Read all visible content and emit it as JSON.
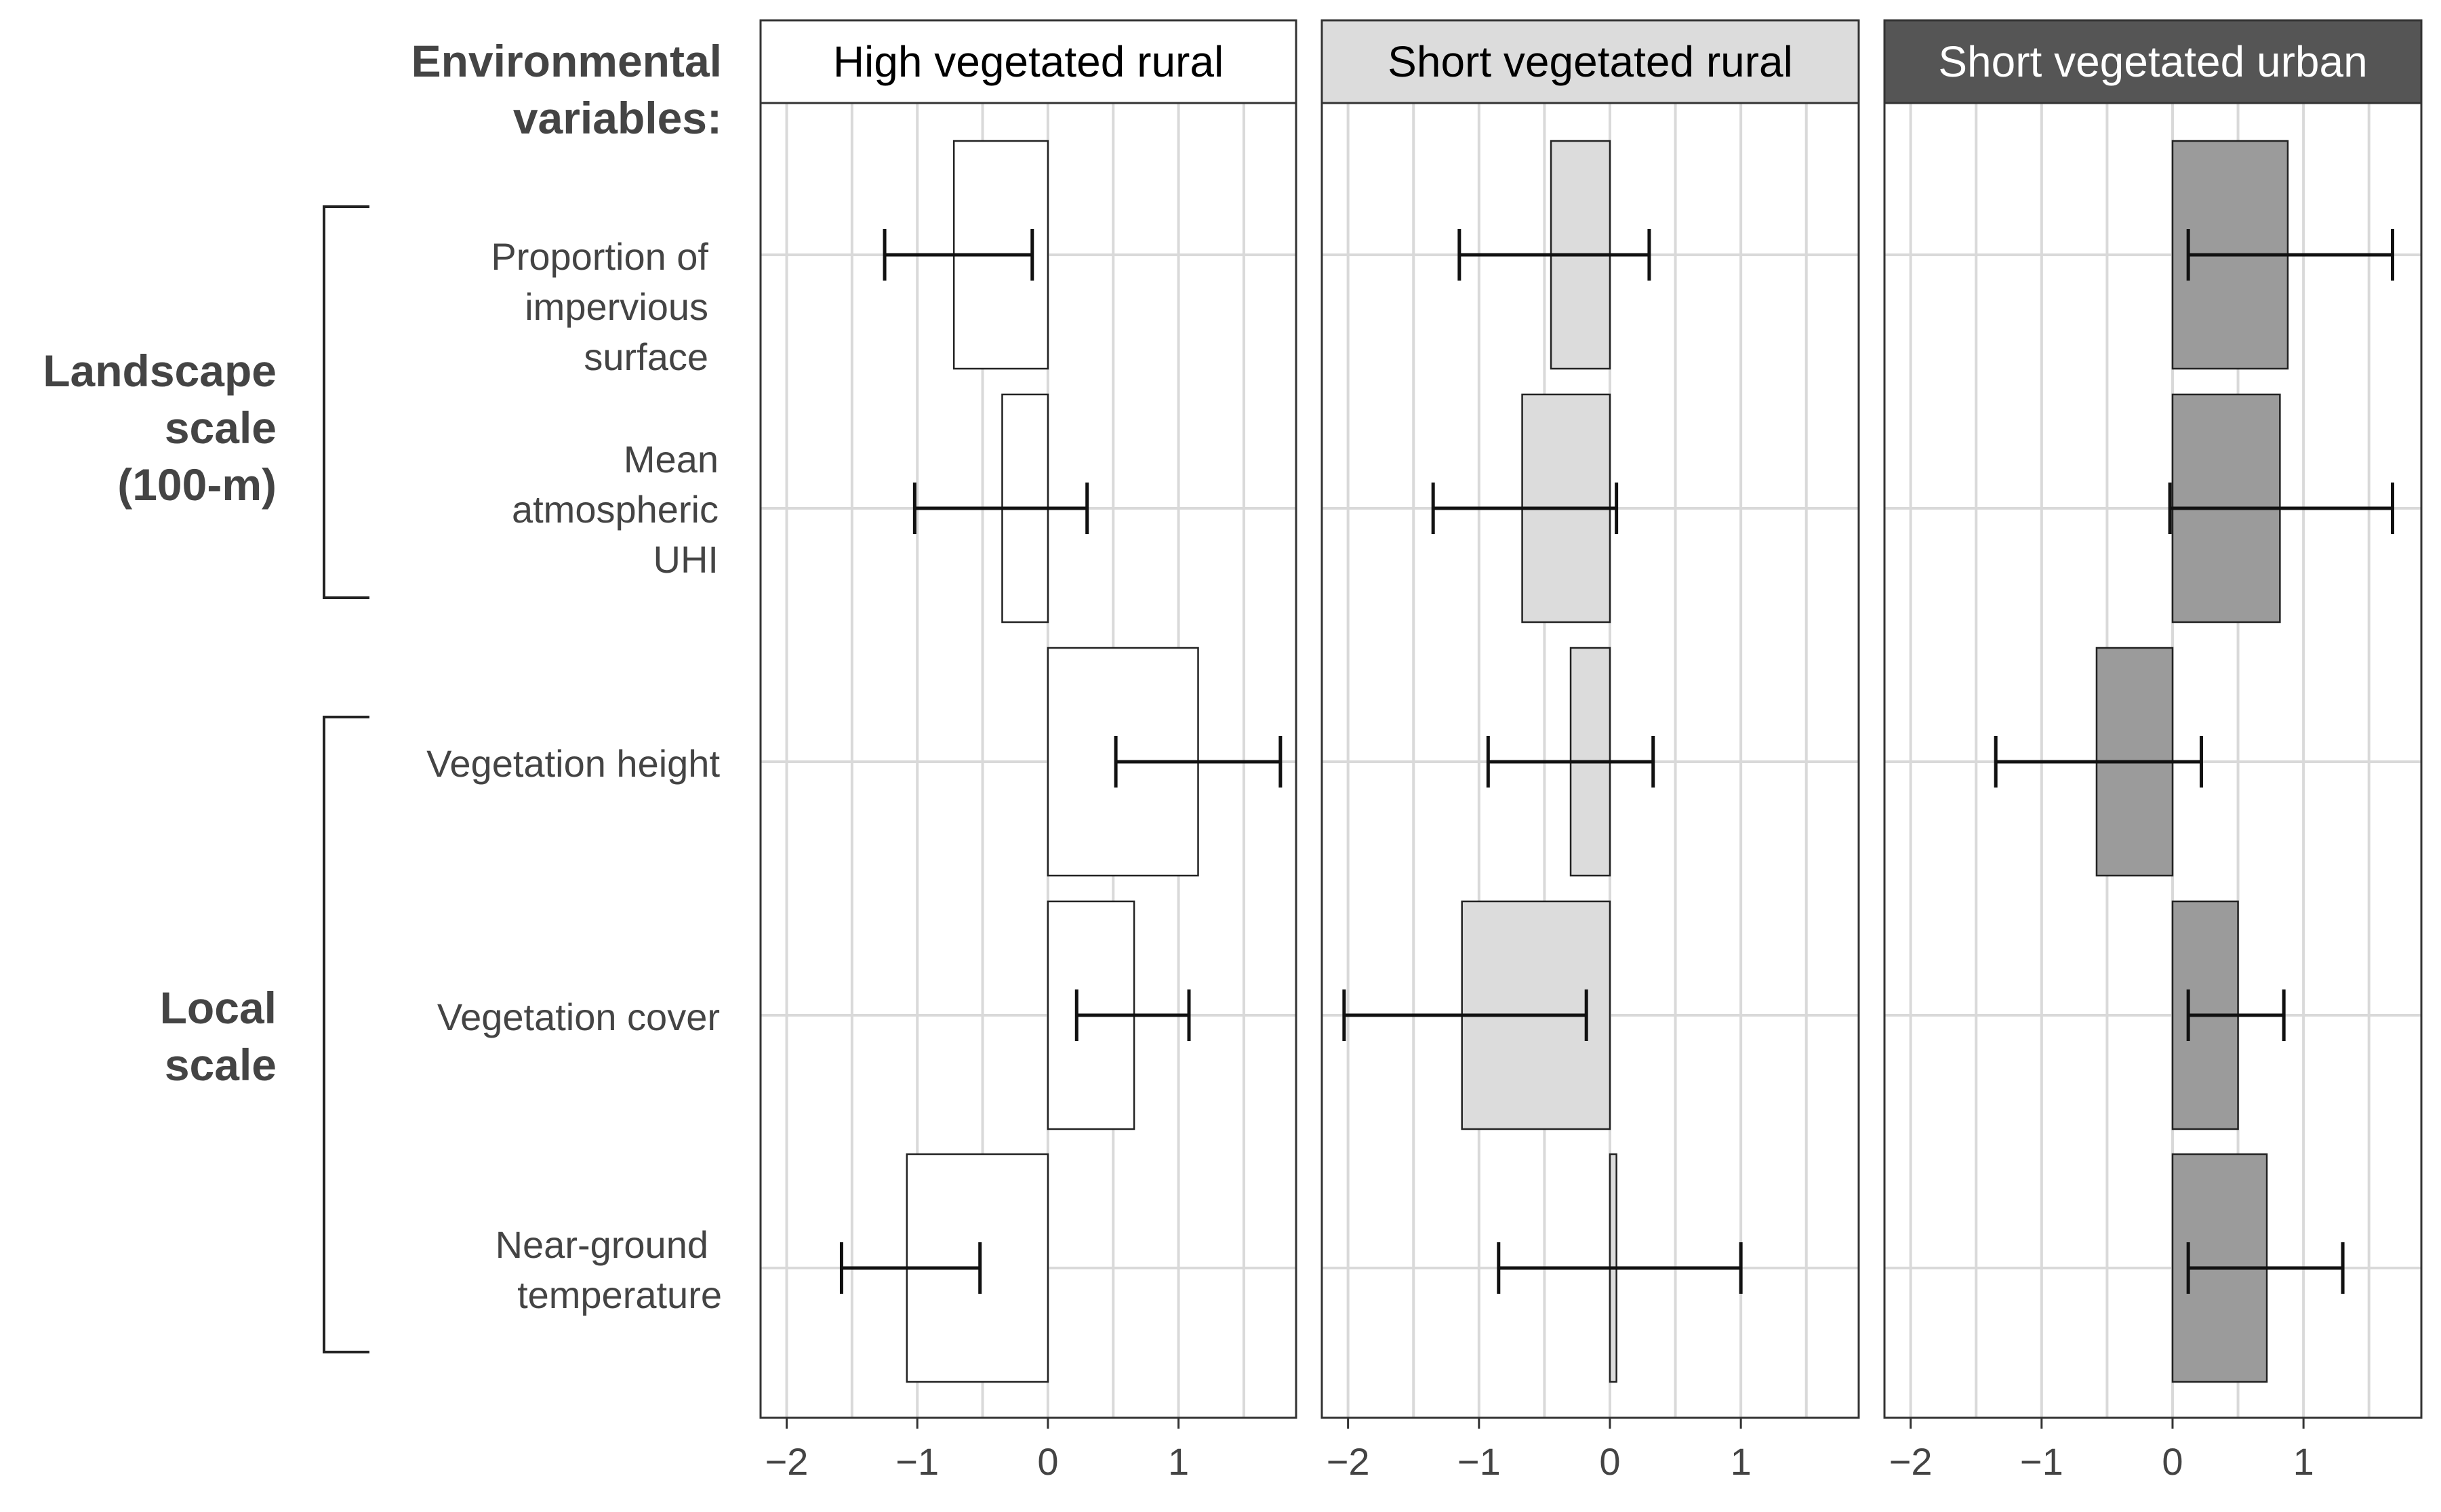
{
  "header": {
    "line1": "Environmental",
    "line2": "variables:"
  },
  "groups": {
    "landscape": [
      "Landscape",
      "scale",
      "(100-m)"
    ],
    "local": [
      "Local",
      "scale"
    ]
  },
  "row_labels": [
    [
      "Proportion of",
      "impervious",
      "surface"
    ],
    [
      "Mean",
      "atmospheric",
      "UHI"
    ],
    [
      "Vegetation height"
    ],
    [
      "Vegetation cover"
    ],
    [
      "Near-ground",
      "temperature"
    ]
  ],
  "chart_data": {
    "type": "bar",
    "orientation": "horizontal",
    "categories": [
      "Proportion of impervious surface",
      "Mean atmospheric UHI",
      "Vegetation height",
      "Vegetation cover",
      "Near-ground temperature"
    ],
    "xlim": [
      -2.2,
      1.9
    ],
    "xticks": [
      -2,
      -1,
      0,
      1
    ],
    "xtick_labels": [
      "−2",
      "−1",
      "0",
      "1"
    ],
    "grid": true,
    "panels": [
      {
        "title": "High vegetated rural",
        "bar_fill": "#ffffff",
        "header_fill": "#ffffff",
        "header_text_color": "#000000",
        "values": [
          -0.72,
          -0.35,
          1.15,
          0.66,
          -1.08
        ],
        "ci_low": [
          -1.25,
          -1.02,
          0.52,
          0.22,
          -1.58
        ],
        "ci_high": [
          -0.12,
          0.3,
          1.78,
          1.08,
          -0.52
        ]
      },
      {
        "title": "Short vegetated rural",
        "bar_fill": "#dcdcdc",
        "header_fill": "#dcdcdc",
        "header_text_color": "#000000",
        "values": [
          -0.45,
          -0.67,
          -0.3,
          -1.13,
          0.05
        ],
        "ci_low": [
          -1.15,
          -1.35,
          -0.93,
          -2.03,
          -0.85
        ],
        "ci_high": [
          0.3,
          0.05,
          0.33,
          -0.18,
          1.0
        ]
      },
      {
        "title": "Short vegetated urban",
        "bar_fill": "#9b9b9b",
        "header_fill": "#555555",
        "header_text_color": "#ffffff",
        "values": [
          0.88,
          0.82,
          -0.58,
          0.5,
          0.72
        ],
        "ci_low": [
          0.12,
          -0.02,
          -1.35,
          0.12,
          0.12
        ],
        "ci_high": [
          1.68,
          1.68,
          0.22,
          0.85,
          1.3
        ]
      }
    ]
  }
}
